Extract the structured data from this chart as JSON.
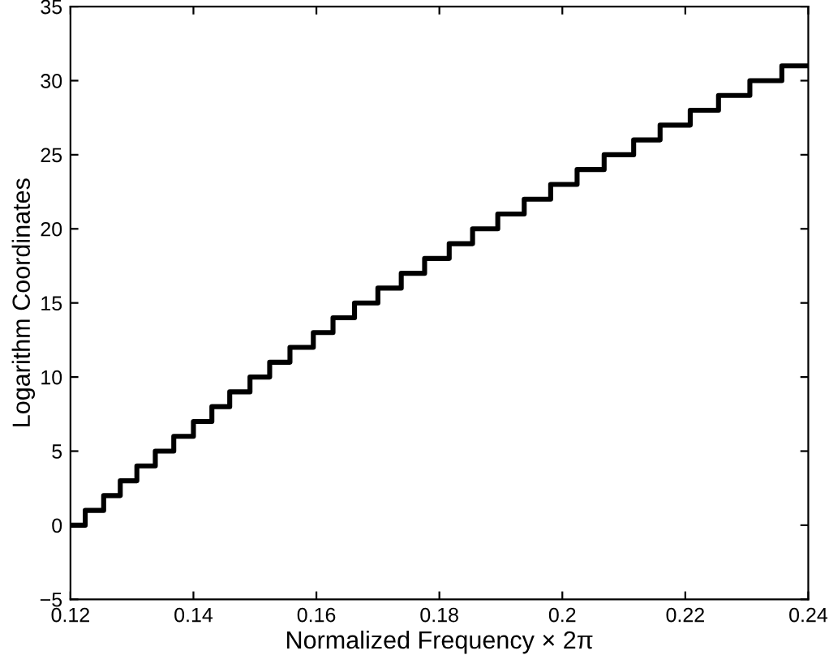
{
  "chart_data": {
    "type": "step",
    "xlabel": "Normalized Frequency × 2π",
    "ylabel": "Logarithm Coordinates",
    "x": [
      0.12,
      0.1224,
      0.1254,
      0.1281,
      0.1308,
      0.1338,
      0.1368,
      0.14,
      0.143,
      0.1459,
      0.1492,
      0.1524,
      0.1557,
      0.1595,
      0.1627,
      0.1662,
      0.17,
      0.1738,
      0.1776,
      0.1816,
      0.1854,
      0.1895,
      0.1938,
      0.1981,
      0.2024,
      0.2068,
      0.2116,
      0.2159,
      0.2208,
      0.2254,
      0.2305,
      0.2357,
      0.24
    ],
    "series": [
      {
        "color": "#000000",
        "values": [
          0,
          1,
          2,
          3,
          4,
          5,
          6,
          7,
          8,
          9,
          10,
          11,
          12,
          13,
          14,
          15,
          16,
          17,
          18,
          19,
          20,
          21,
          22,
          23,
          24,
          25,
          26,
          27,
          28,
          29,
          30,
          31,
          31
        ]
      }
    ],
    "xlim": [
      0.12,
      0.24
    ],
    "xticks": [
      0.12,
      0.14,
      0.16,
      0.18,
      0.2,
      0.22,
      0.24
    ],
    "ylim": [
      -5,
      35
    ],
    "yticks": [
      {
        "value": -5,
        "label": "−5"
      },
      0,
      5,
      10,
      15,
      20,
      25,
      30,
      35
    ],
    "grid": false,
    "line_style": "solid"
  }
}
